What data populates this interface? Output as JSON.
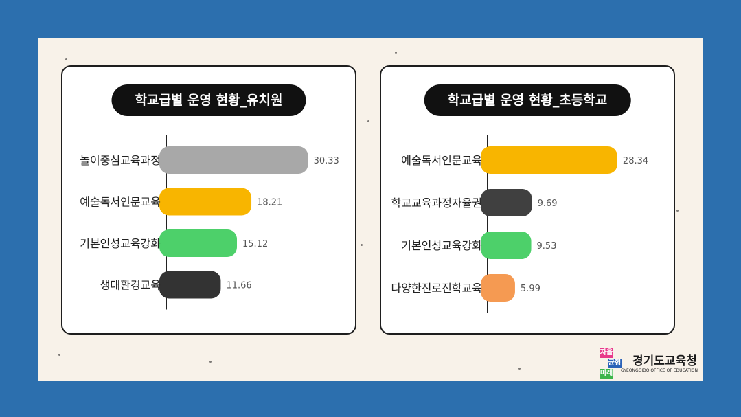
{
  "chart_data": [
    {
      "type": "bar",
      "orientation": "horizontal",
      "title": "학교급별 운영 현황_유치원",
      "categories": [
        "놀이중심교육과정",
        "예술독서인문교육",
        "기본인성교육강화",
        "생태환경교육"
      ],
      "values": [
        30.33,
        18.21,
        15.12,
        11.66
      ],
      "value_labels": [
        "30.33",
        "18.21",
        "15.12",
        "11.66"
      ],
      "colors": [
        "#a8a8a8",
        "#f8b500",
        "#4dd06a",
        "#333333"
      ],
      "xlim": [
        0,
        32
      ]
    },
    {
      "type": "bar",
      "orientation": "horizontal",
      "title": "학교급별 운영 현황_초등학교",
      "categories": [
        "예술독서인문교육",
        "학교교육과정자율권",
        "기본인성교육강화",
        "다양한진로진학교육"
      ],
      "values": [
        28.34,
        9.69,
        9.53,
        5.99
      ],
      "value_labels": [
        "28.34",
        "9.69",
        "9.53",
        "5.99"
      ],
      "colors": [
        "#f8b500",
        "#404040",
        "#4dd06a",
        "#f59a52"
      ],
      "xlim": [
        0,
        30
      ]
    }
  ],
  "logo": {
    "badge_1": "자율",
    "badge_2": "균형",
    "badge_3": "미래",
    "name": "경기도교육청",
    "subtitle": "GYEONGGIDO OFFICE OF EDUCATION",
    "colors": [
      "#e8398a",
      "#2a62b8",
      "#3bb54a"
    ]
  }
}
